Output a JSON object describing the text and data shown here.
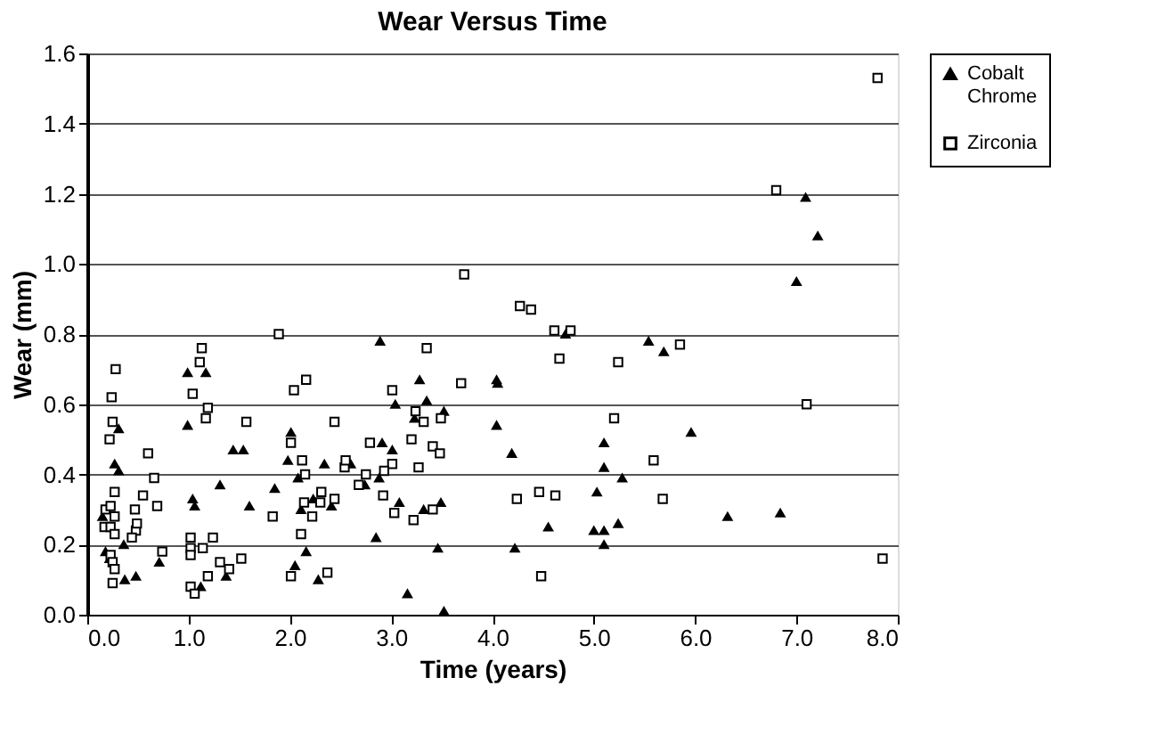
{
  "chart_data": {
    "type": "scatter",
    "title": "Wear Versus Time",
    "xlabel": "Time (years)",
    "ylabel": "Wear (mm)",
    "xlim": [
      0,
      8
    ],
    "ylim": [
      0,
      1.6
    ],
    "xticks": [
      {
        "value": 0,
        "label": "0.0"
      },
      {
        "value": 1,
        "label": "1.0"
      },
      {
        "value": 2,
        "label": "2.0"
      },
      {
        "value": 3,
        "label": "3.0"
      },
      {
        "value": 4,
        "label": "4.0"
      },
      {
        "value": 5,
        "label": "5.0"
      },
      {
        "value": 6,
        "label": "6.0"
      },
      {
        "value": 7,
        "label": "7.0"
      },
      {
        "value": 8,
        "label": "8.0"
      }
    ],
    "yticks": [
      {
        "value": 0,
        "label": "0.0"
      },
      {
        "value": 0.2,
        "label": "0.2"
      },
      {
        "value": 0.4,
        "label": "0.4"
      },
      {
        "value": 0.6,
        "label": "0.6"
      },
      {
        "value": 0.8,
        "label": "0.8"
      },
      {
        "value": 1.0,
        "label": "1.0"
      },
      {
        "value": 1.2,
        "label": "1.2"
      },
      {
        "value": 1.4,
        "label": "1.4"
      },
      {
        "value": 1.6,
        "label": "1.6"
      }
    ],
    "grid": "y",
    "legend": "right",
    "series": [
      {
        "name": "Cobalt Chrome",
        "color": "#000000",
        "marker": "triangle",
        "x": [
          0.15,
          0.18,
          0.22,
          0.31,
          0.27,
          0.31,
          0.36,
          0.37,
          0.48,
          0.71,
          0.99,
          0.99,
          1.04,
          1.06,
          1.17,
          1.12,
          1.37,
          1.31,
          1.44,
          1.54,
          1.6,
          1.85,
          1.98,
          2.01,
          2.05,
          2.08,
          2.11,
          2.16,
          2.23,
          2.28,
          2.34,
          2.41,
          2.6,
          2.74,
          2.89,
          3.28,
          3.04,
          3.35,
          3.52,
          3.23,
          2.91,
          3.01,
          2.88,
          3.08,
          3.32,
          3.49,
          2.85,
          3.46,
          3.16,
          3.52,
          4.04,
          4.05,
          4.04,
          4.19,
          4.22,
          4.55,
          4.72,
          5.1,
          5.1,
          5.28,
          5.03,
          5.0,
          5.1,
          5.1,
          5.24,
          7.09,
          7.21,
          7.0,
          5.54,
          5.69,
          5.96,
          6.32,
          6.84
        ],
        "values": [
          0.28,
          0.18,
          0.16,
          0.53,
          0.43,
          0.41,
          0.2,
          0.1,
          0.11,
          0.15,
          0.69,
          0.54,
          0.33,
          0.31,
          0.69,
          0.08,
          0.11,
          0.37,
          0.47,
          0.47,
          0.31,
          0.36,
          0.44,
          0.52,
          0.14,
          0.39,
          0.3,
          0.18,
          0.33,
          0.1,
          0.43,
          0.31,
          0.43,
          0.37,
          0.78,
          0.67,
          0.6,
          0.61,
          0.58,
          0.56,
          0.49,
          0.47,
          0.39,
          0.32,
          0.3,
          0.32,
          0.22,
          0.19,
          0.06,
          0.01,
          0.67,
          0.66,
          0.54,
          0.46,
          0.19,
          0.25,
          0.8,
          0.49,
          0.42,
          0.39,
          0.35,
          0.24,
          0.24,
          0.2,
          0.26,
          1.19,
          1.08,
          0.95,
          0.78,
          0.75,
          0.52,
          0.28,
          0.29
        ]
      },
      {
        "name": "Zirconia",
        "color": "#000000",
        "marker": "square",
        "x": [
          0.28,
          0.24,
          0.25,
          0.22,
          0.27,
          0.18,
          0.23,
          0.17,
          0.23,
          0.27,
          0.27,
          0.23,
          0.25,
          0.27,
          0.25,
          0.47,
          0.48,
          0.49,
          0.44,
          0.55,
          0.66,
          0.6,
          0.69,
          0.74,
          1.02,
          1.02,
          1.02,
          1.13,
          1.11,
          1.04,
          1.19,
          1.17,
          1.02,
          1.06,
          1.14,
          1.24,
          1.19,
          1.31,
          1.4,
          1.52,
          1.57,
          1.83,
          1.89,
          2.01,
          2.04,
          2.16,
          2.12,
          2.15,
          2.14,
          2.11,
          2.01,
          2.22,
          2.3,
          2.31,
          2.44,
          2.44,
          2.37,
          2.54,
          2.55,
          3.72,
          4.27,
          4.38,
          4.61,
          4.77,
          4.66,
          5.24,
          3.35,
          3.69,
          3.01,
          3.24,
          3.32,
          3.49,
          2.79,
          3.2,
          3.41,
          3.48,
          3.01,
          2.93,
          3.27,
          2.75,
          2.68,
          2.92,
          3.03,
          3.22,
          3.41,
          4.24,
          4.46,
          4.62,
          5.2,
          4.48,
          6.8,
          5.85,
          7.1,
          5.59,
          5.68,
          7.8,
          7.85
        ],
        "values": [
          0.7,
          0.62,
          0.55,
          0.5,
          0.35,
          0.3,
          0.31,
          0.25,
          0.25,
          0.28,
          0.23,
          0.17,
          0.15,
          0.13,
          0.09,
          0.3,
          0.24,
          0.26,
          0.22,
          0.34,
          0.39,
          0.46,
          0.31,
          0.18,
          0.22,
          0.19,
          0.17,
          0.76,
          0.72,
          0.63,
          0.59,
          0.56,
          0.08,
          0.06,
          0.19,
          0.22,
          0.11,
          0.15,
          0.13,
          0.16,
          0.55,
          0.28,
          0.8,
          0.49,
          0.64,
          0.67,
          0.44,
          0.4,
          0.32,
          0.23,
          0.11,
          0.28,
          0.32,
          0.35,
          0.33,
          0.55,
          0.12,
          0.42,
          0.44,
          0.97,
          0.88,
          0.87,
          0.81,
          0.81,
          0.73,
          0.72,
          0.76,
          0.66,
          0.64,
          0.58,
          0.55,
          0.56,
          0.49,
          0.5,
          0.48,
          0.46,
          0.43,
          0.41,
          0.42,
          0.4,
          0.37,
          0.34,
          0.29,
          0.27,
          0.3,
          0.33,
          0.35,
          0.34,
          0.56,
          0.11,
          1.21,
          0.77,
          0.6,
          0.44,
          0.33,
          1.53,
          0.16
        ]
      }
    ]
  }
}
